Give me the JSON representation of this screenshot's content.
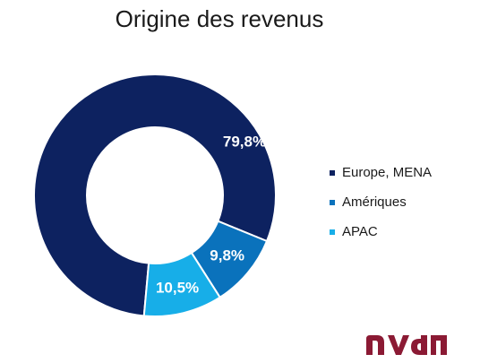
{
  "chart_data": {
    "type": "pie",
    "title": "Origine des revenus",
    "donut": true,
    "categories": [
      "Europe, MENA",
      "Amériques",
      "APAC"
    ],
    "values": [
      79.8,
      9.8,
      10.5
    ],
    "data_labels": [
      "79,8%",
      "9,8%",
      "10,5%"
    ],
    "colors": [
      "#0d2260",
      "#0a72bc",
      "#17aee8"
    ],
    "legend": "right"
  },
  "logo": {
    "text": "nvd",
    "color": "#8b1a34"
  }
}
